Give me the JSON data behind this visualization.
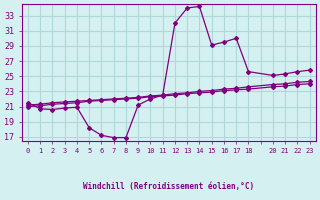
{
  "xlabel": "Windchill (Refroidissement éolien,°C)",
  "bg_color": "#d4f0f0",
  "grid_color": "#b0d8d8",
  "line_color": "#800080",
  "x_ticks": [
    0,
    1,
    2,
    3,
    4,
    5,
    6,
    7,
    8,
    9,
    10,
    11,
    12,
    13,
    14,
    15,
    16,
    17,
    18,
    19,
    20,
    21,
    22,
    23
  ],
  "x_tick_labels": [
    "0",
    "1",
    "2",
    "3",
    "4",
    "5",
    "6",
    "7",
    "8",
    "9",
    "10",
    "11",
    "12",
    "13",
    "14",
    "15",
    "16",
    "17",
    "18",
    "",
    "20",
    "21",
    "22",
    "23"
  ],
  "y_ticks": [
    17,
    19,
    21,
    23,
    25,
    27,
    29,
    31,
    33
  ],
  "ylim": [
    16.5,
    34.5
  ],
  "xlim": [
    -0.5,
    23.5
  ],
  "series1_x": [
    0,
    1,
    2,
    3,
    4,
    5,
    6,
    7,
    8,
    9,
    10,
    11,
    12,
    13,
    14,
    15,
    16,
    17,
    18,
    20,
    21,
    22,
    23
  ],
  "series1_y": [
    21.5,
    20.7,
    20.6,
    20.8,
    20.9,
    18.2,
    17.2,
    16.9,
    16.9,
    21.2,
    22.0,
    22.5,
    32.0,
    34.0,
    34.2,
    29.1,
    29.5,
    30.0,
    25.6,
    25.1,
    25.3,
    25.6,
    25.8
  ],
  "series2_x": [
    0,
    1,
    2,
    3,
    4,
    5,
    6,
    7,
    8,
    9,
    10,
    11,
    12,
    13,
    14,
    15,
    16,
    17,
    18,
    20,
    21,
    22,
    23
  ],
  "series2_y": [
    21.2,
    21.3,
    21.5,
    21.6,
    21.7,
    21.8,
    21.9,
    22.0,
    22.1,
    22.2,
    22.4,
    22.5,
    22.7,
    22.8,
    23.0,
    23.1,
    23.3,
    23.4,
    23.6,
    23.9,
    24.0,
    24.2,
    24.3
  ],
  "series3_x": [
    0,
    1,
    2,
    3,
    4,
    5,
    6,
    7,
    8,
    9,
    10,
    11,
    12,
    13,
    14,
    15,
    16,
    17,
    18,
    20,
    21,
    22,
    23
  ],
  "series3_y": [
    21.0,
    21.1,
    21.3,
    21.4,
    21.5,
    21.7,
    21.8,
    21.9,
    22.0,
    22.1,
    22.3,
    22.4,
    22.5,
    22.7,
    22.8,
    22.9,
    23.1,
    23.2,
    23.3,
    23.6,
    23.7,
    23.9,
    24.0
  ]
}
